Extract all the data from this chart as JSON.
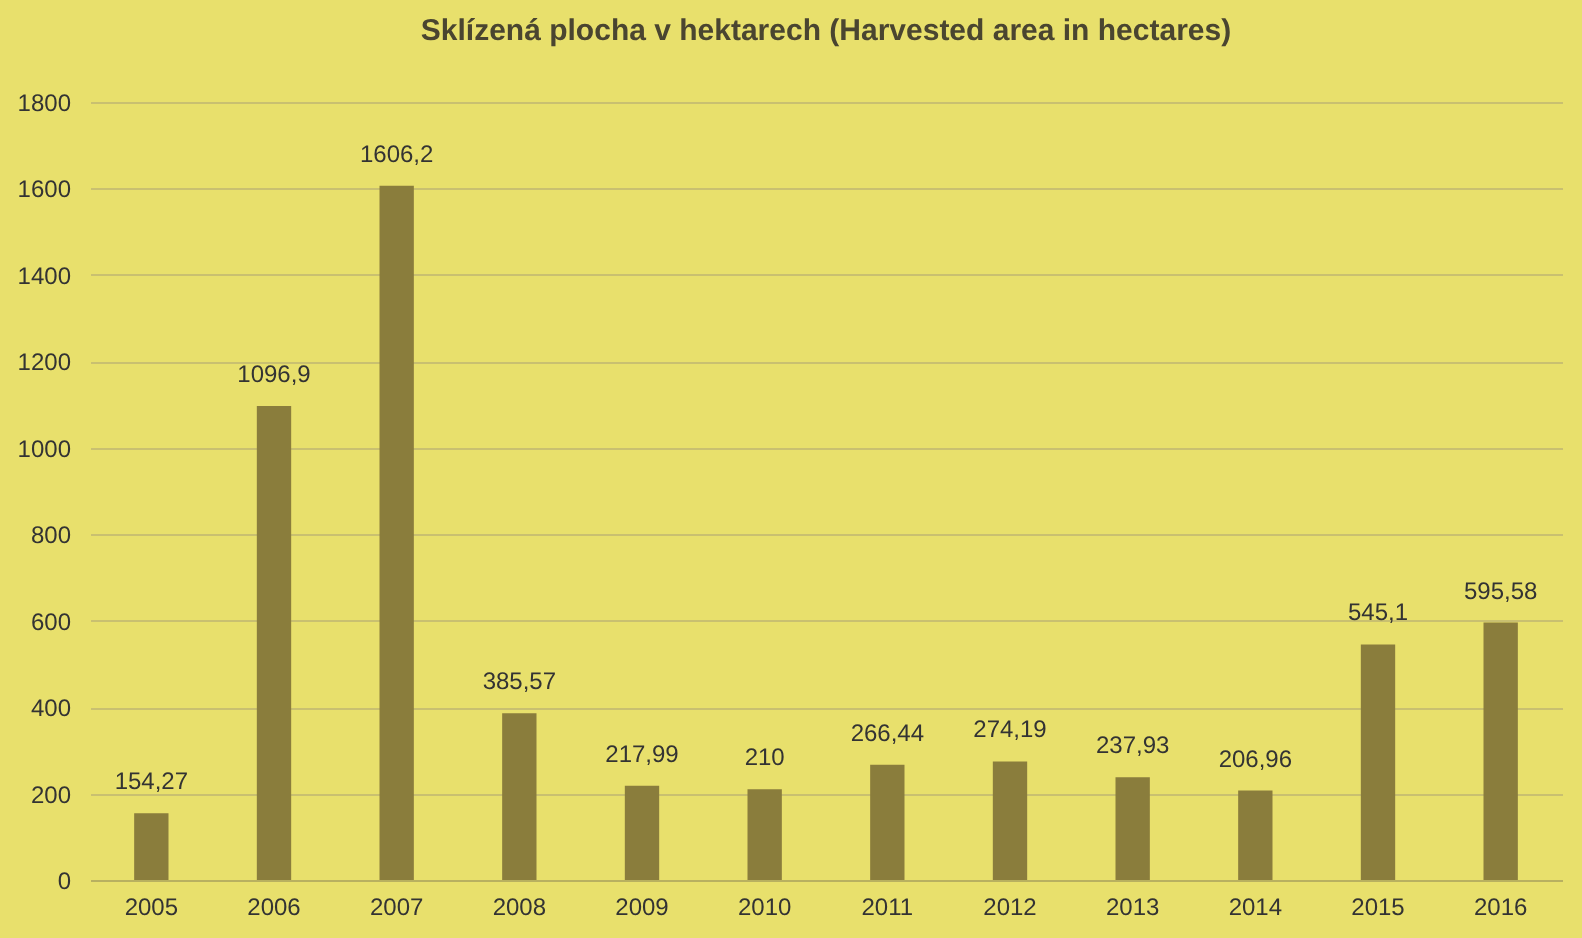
{
  "chart_data": {
    "type": "bar",
    "title": "Sklízená plocha v hektarech (Harvested area in hectares)",
    "categories": [
      "2005",
      "2006",
      "2007",
      "2008",
      "2009",
      "2010",
      "2011",
      "2012",
      "2013",
      "2014",
      "2015",
      "2016"
    ],
    "values": [
      154.27,
      1096.9,
      1606.2,
      385.57,
      217.99,
      210,
      266.44,
      274.19,
      237.93,
      206.96,
      545.1,
      595.58
    ],
    "value_labels": [
      "154,27",
      "1096,9",
      "1606,2",
      "385,57",
      "217,99",
      "210",
      "266,44",
      "274,19",
      "237,93",
      "206,96",
      "545,1",
      "595,58"
    ],
    "color": "#8a7d3c",
    "ylim": [
      0,
      1800
    ],
    "yticks": [
      0,
      200,
      400,
      600,
      800,
      1000,
      1200,
      1400,
      1600,
      1800
    ],
    "grid": "y"
  }
}
